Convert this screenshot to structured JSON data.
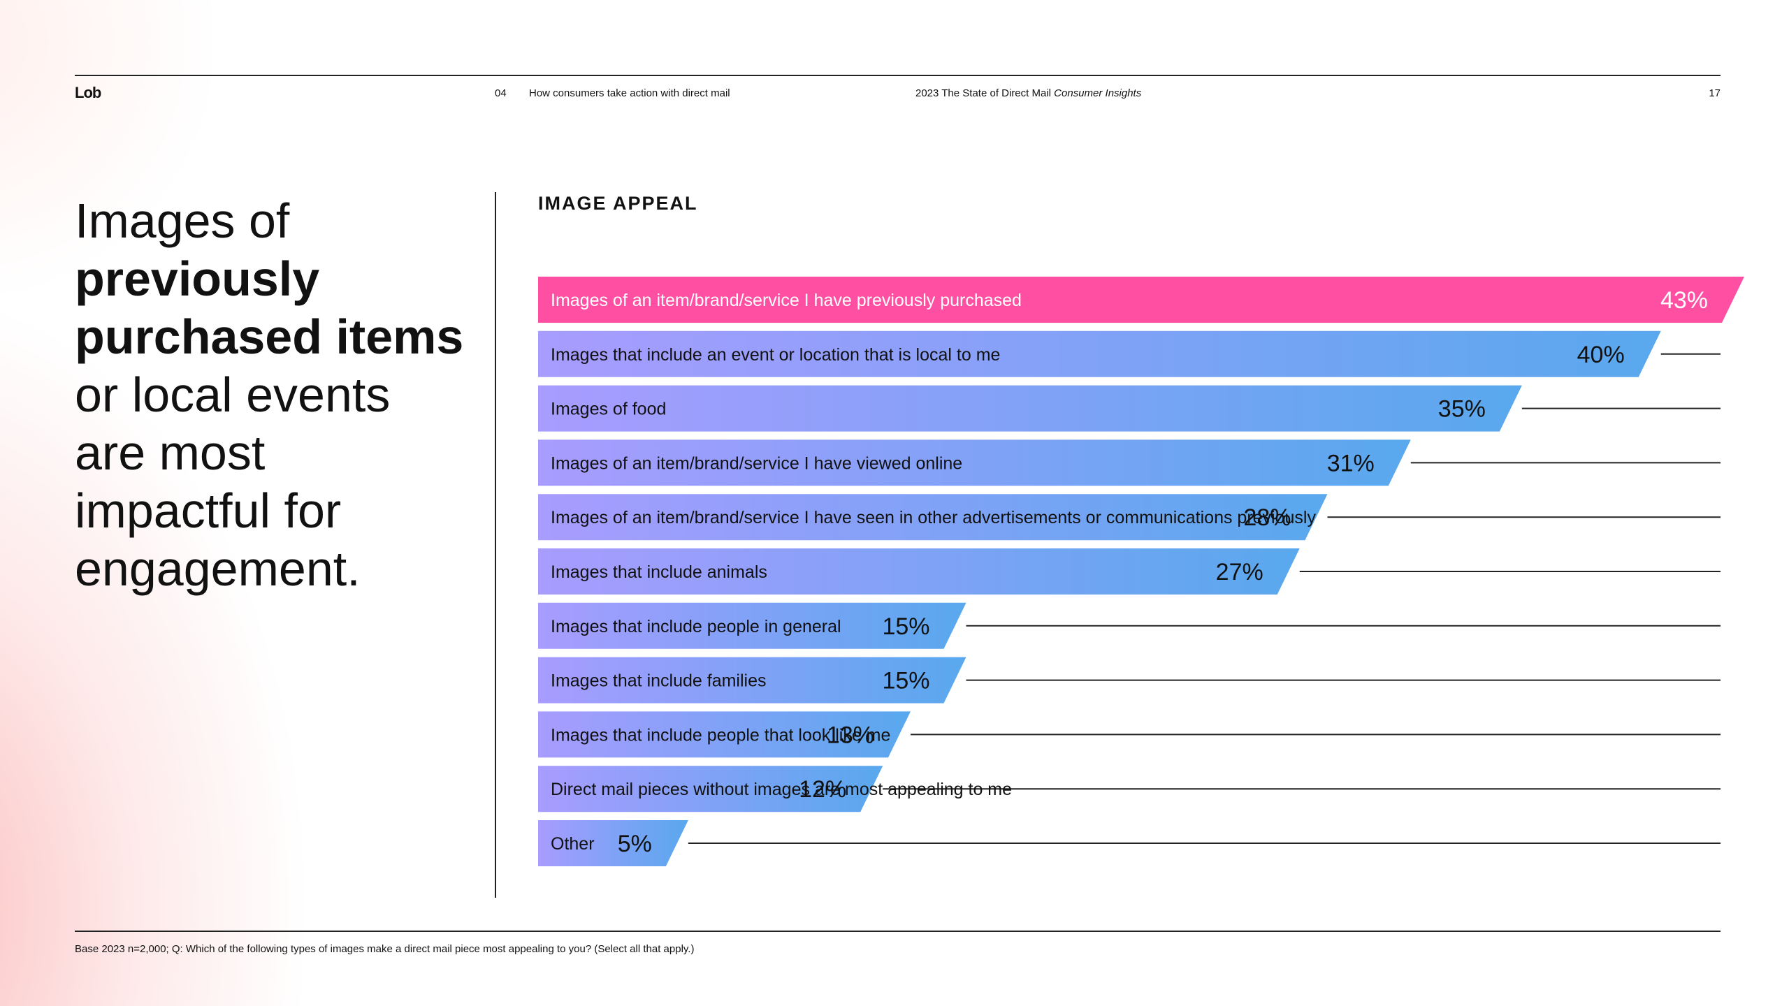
{
  "header": {
    "logo": "Lob",
    "section_number": "04",
    "section_title": "How consumers take action with direct mail",
    "report_title_prefix": "2023 The State of Direct Mail",
    "report_title_italic": "Consumer Insights",
    "page_number": "17"
  },
  "headline": {
    "part1": "Images of ",
    "bold1": "previously purchased items",
    "part2": " or local events are most impactful for engagement."
  },
  "footnote": "Base 2023 n=2,000; Q: Which of the following types of images make a direct mail piece most appealing to you?  (Select all that apply.)",
  "colors": {
    "highlight": "#FF4FA3",
    "gradient_start": "#A89CFF",
    "gradient_end": "#59A8EE",
    "leader_line": "#222222"
  },
  "chart_data": {
    "type": "bar",
    "orientation": "horizontal",
    "title": "IMAGE APPEAL",
    "unit": "%",
    "xlim": [
      0,
      43
    ],
    "highlight_index": 0,
    "categories": [
      "Images of an item/brand/service I have previously purchased",
      "Images that include an event or location that is local to me",
      "Images of food",
      "Images of an item/brand/service I have viewed online",
      "Images of an item/brand/service I have seen in other advertisements or communications previously",
      "Images that include animals",
      "Images that include people in general",
      "Images that include families",
      "Images that include people that look like me",
      "Direct mail pieces without images are most appealing to me",
      "Other"
    ],
    "values": [
      43,
      40,
      35,
      31,
      28,
      27,
      15,
      15,
      13,
      12,
      5
    ],
    "value_labels": [
      "43%",
      "40%",
      "35%",
      "31%",
      "28%",
      "27%",
      "15%",
      "15%",
      "13%",
      "12%",
      "5%"
    ]
  }
}
